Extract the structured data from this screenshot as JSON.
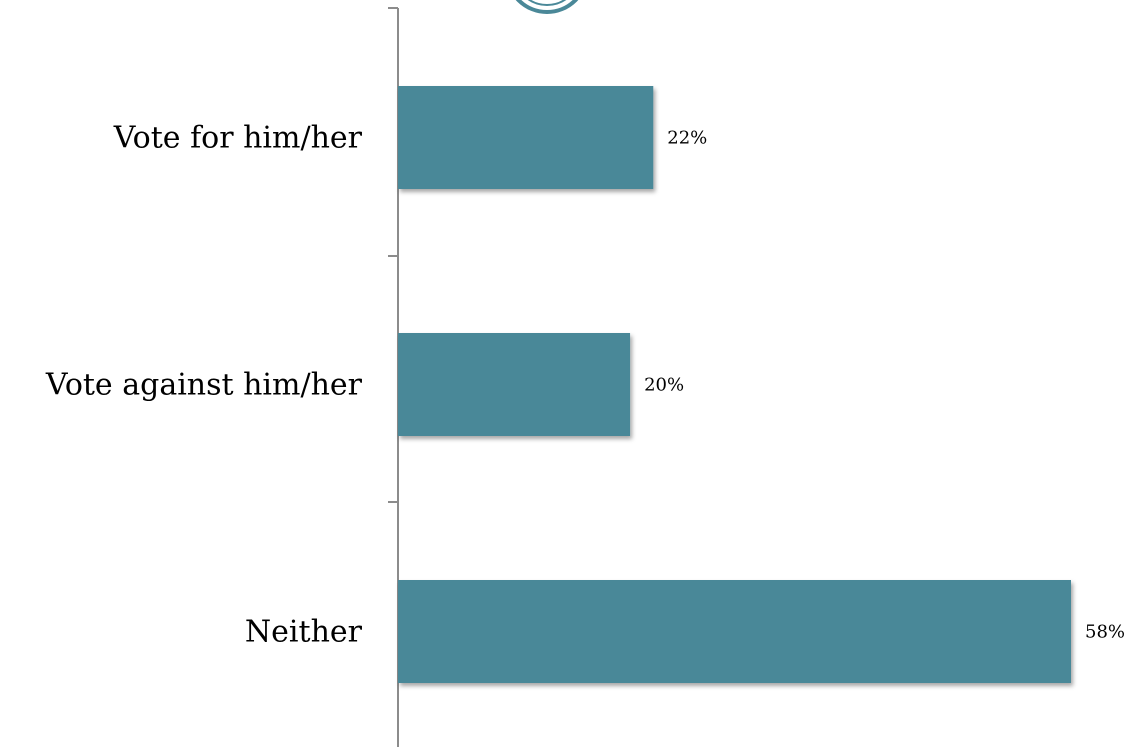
{
  "chart_data": {
    "type": "bar",
    "orientation": "horizontal",
    "categories": [
      "Vote for him/her",
      "Vote against him/her",
      "Neither"
    ],
    "values": [
      22,
      20,
      58
    ],
    "value_labels": [
      "22%",
      "20%",
      "58%"
    ],
    "unit": "%",
    "xlim": [
      0,
      58
    ],
    "grid": false,
    "colors": {
      "bar": "#4a8898",
      "bar_shadow": "#9ab0b6",
      "axis": "#8c8c8c",
      "logo_ring": "#4a8898"
    }
  }
}
